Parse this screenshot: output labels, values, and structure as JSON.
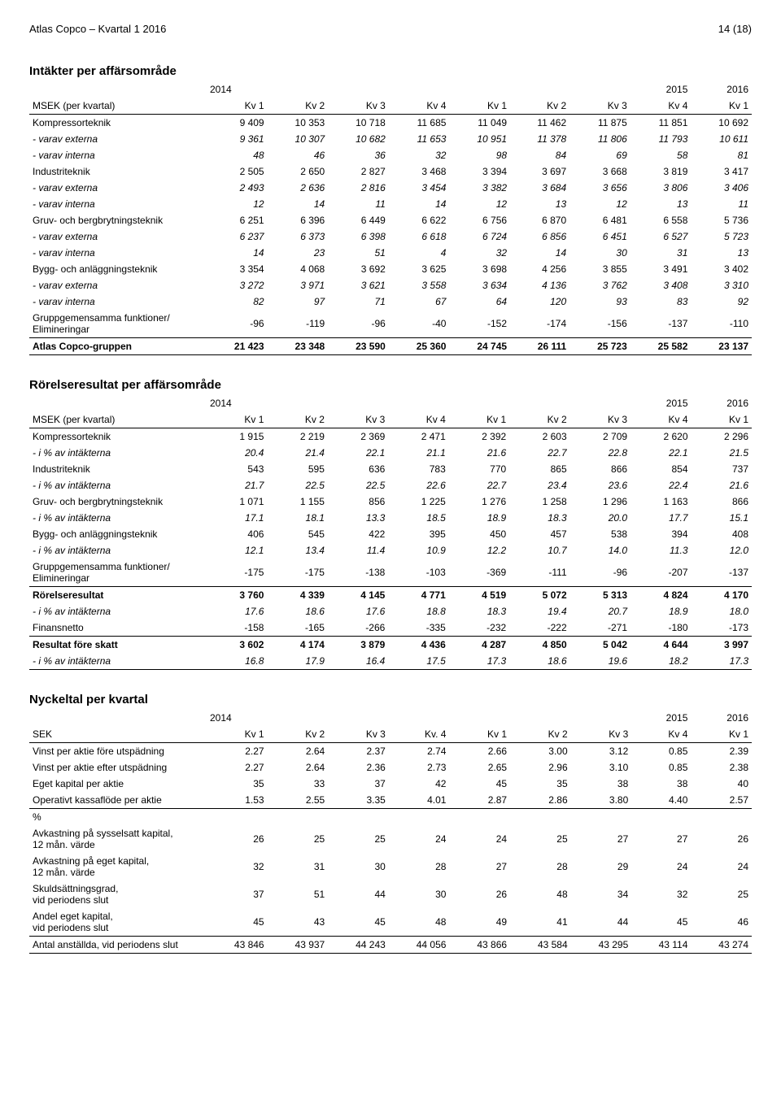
{
  "header": {
    "left": "Atlas Copco – Kvartal 1 2016",
    "right": "14 (18)"
  },
  "revenue": {
    "title": "Intäkter per affärsområde",
    "years": [
      "2014",
      "2015",
      "2016"
    ],
    "rowhead": "MSEK (per kvartal)",
    "cols": [
      "Kv 1",
      "Kv 2",
      "Kv 3",
      "Kv 4",
      "Kv 1",
      "Kv 2",
      "Kv 3",
      "Kv 4",
      "Kv 1"
    ],
    "rows": [
      {
        "label": "Kompressorteknik",
        "v": [
          "9 409",
          "10 353",
          "10 718",
          "11 685",
          "11 049",
          "11 462",
          "11 875",
          "11 851",
          "10 692"
        ]
      },
      {
        "label": "- varav externa",
        "v": [
          "9 361",
          "10 307",
          "10 682",
          "11 653",
          "10 951",
          "11 378",
          "11 806",
          "11 793",
          "10 611"
        ],
        "italic": true
      },
      {
        "label": "- varav interna",
        "v": [
          "48",
          "46",
          "36",
          "32",
          "98",
          "84",
          "69",
          "58",
          "81"
        ],
        "italic": true
      },
      {
        "label": "Industriteknik",
        "v": [
          "2 505",
          "2 650",
          "2 827",
          "3 468",
          "3 394",
          "3 697",
          "3 668",
          "3 819",
          "3 417"
        ]
      },
      {
        "label": "- varav externa",
        "v": [
          "2 493",
          "2 636",
          "2 816",
          "3 454",
          "3 382",
          "3 684",
          "3 656",
          "3 806",
          "3 406"
        ],
        "italic": true
      },
      {
        "label": "- varav interna",
        "v": [
          "12",
          "14",
          "11",
          "14",
          "12",
          "13",
          "12",
          "13",
          "11"
        ],
        "italic": true
      },
      {
        "label": "Gruv- och bergbrytningsteknik",
        "v": [
          "6 251",
          "6 396",
          "6 449",
          "6 622",
          "6 756",
          "6 870",
          "6 481",
          "6 558",
          "5 736"
        ]
      },
      {
        "label": "- varav externa",
        "v": [
          "6 237",
          "6 373",
          "6 398",
          "6 618",
          "6 724",
          "6 856",
          "6 451",
          "6 527",
          "5 723"
        ],
        "italic": true
      },
      {
        "label": "- varav interna",
        "v": [
          "14",
          "23",
          "51",
          "4",
          "32",
          "14",
          "30",
          "31",
          "13"
        ],
        "italic": true
      },
      {
        "label": "Bygg- och anläggningsteknik",
        "v": [
          "3 354",
          "4 068",
          "3 692",
          "3 625",
          "3 698",
          "4 256",
          "3 855",
          "3 491",
          "3 402"
        ]
      },
      {
        "label": "- varav externa",
        "v": [
          "3 272",
          "3 971",
          "3 621",
          "3 558",
          "3 634",
          "4 136",
          "3 762",
          "3 408",
          "3 310"
        ],
        "italic": true
      },
      {
        "label": "- varav interna",
        "v": [
          "82",
          "97",
          "71",
          "67",
          "64",
          "120",
          "93",
          "83",
          "92"
        ],
        "italic": true
      },
      {
        "label": "Gruppgemensamma funktioner/\nElimineringar",
        "v": [
          "-96",
          "-119",
          "-96",
          "-40",
          "-152",
          "-174",
          "-156",
          "-137",
          "-110"
        ],
        "rule": true
      },
      {
        "label": "Atlas Copco-gruppen",
        "v": [
          "21 423",
          "23 348",
          "23 590",
          "25 360",
          "24 745",
          "26 111",
          "25 723",
          "25 582",
          "23 137"
        ],
        "bold": true,
        "final": true
      }
    ]
  },
  "opresult": {
    "title": "Rörelseresultat per affärsområde",
    "years": [
      "2014",
      "2015",
      "2016"
    ],
    "rowhead": "MSEK (per kvartal)",
    "cols": [
      "Kv 1",
      "Kv 2",
      "Kv 3",
      "Kv 4",
      "Kv 1",
      "Kv 2",
      "Kv 3",
      "Kv 4",
      "Kv 1"
    ],
    "rows": [
      {
        "label": "Kompressorteknik",
        "v": [
          "1 915",
          "2 219",
          "2 369",
          "2 471",
          "2 392",
          "2 603",
          "2 709",
          "2 620",
          "2 296"
        ]
      },
      {
        "label": "- i % av intäkterna",
        "v": [
          "20.4",
          "21.4",
          "22.1",
          "21.1",
          "21.6",
          "22.7",
          "22.8",
          "22.1",
          "21.5"
        ],
        "italic": true
      },
      {
        "label": "Industriteknik",
        "v": [
          "543",
          "595",
          "636",
          "783",
          "770",
          "865",
          "866",
          "854",
          "737"
        ]
      },
      {
        "label": "- i % av intäkterna",
        "v": [
          "21.7",
          "22.5",
          "22.5",
          "22.6",
          "22.7",
          "23.4",
          "23.6",
          "22.4",
          "21.6"
        ],
        "italic": true
      },
      {
        "label": "Gruv- och bergbrytningsteknik",
        "v": [
          "1 071",
          "1 155",
          "856",
          "1 225",
          "1 276",
          "1 258",
          "1 296",
          "1 163",
          "866"
        ]
      },
      {
        "label": "- i % av intäkterna",
        "v": [
          "17.1",
          "18.1",
          "13.3",
          "18.5",
          "18.9",
          "18.3",
          "20.0",
          "17.7",
          "15.1"
        ],
        "italic": true
      },
      {
        "label": "Bygg- och anläggningsteknik",
        "v": [
          "406",
          "545",
          "422",
          "395",
          "450",
          "457",
          "538",
          "394",
          "408"
        ]
      },
      {
        "label": "- i % av intäkterna",
        "v": [
          "12.1",
          "13.4",
          "11.4",
          "10.9",
          "12.2",
          "10.7",
          "14.0",
          "11.3",
          "12.0"
        ],
        "italic": true
      },
      {
        "label": "Gruppgemensamma funktioner/\nElimineringar",
        "v": [
          "-175",
          "-175",
          "-138",
          "-103",
          "-369",
          "-111",
          "-96",
          "-207",
          "-137"
        ],
        "rule": true
      },
      {
        "label": "Rörelseresultat",
        "v": [
          "3 760",
          "4 339",
          "4 145",
          "4 771",
          "4 519",
          "5 072",
          "5 313",
          "4 824",
          "4 170"
        ],
        "bold": true,
        "top": true
      },
      {
        "label": "- i % av intäkterna",
        "v": [
          "17.6",
          "18.6",
          "17.6",
          "18.8",
          "18.3",
          "19.4",
          "20.7",
          "18.9",
          "18.0"
        ],
        "italic": true
      },
      {
        "label": "Finansnetto",
        "v": [
          "-158",
          "-165",
          "-266",
          "-335",
          "-232",
          "-222",
          "-271",
          "-180",
          "-173"
        ],
        "rule": true
      },
      {
        "label": "Resultat före skatt",
        "v": [
          "3 602",
          "4 174",
          "3 879",
          "4 436",
          "4 287",
          "4 850",
          "5 042",
          "4 644",
          "3 997"
        ],
        "bold": true,
        "top": true
      },
      {
        "label": "- i % av intäkterna",
        "v": [
          "16.8",
          "17.9",
          "16.4",
          "17.5",
          "17.3",
          "18.6",
          "19.6",
          "18.2",
          "17.3"
        ],
        "italic": true,
        "final": true
      }
    ]
  },
  "kpi": {
    "title": "Nyckeltal per kvartal",
    "years": [
      "2014",
      "2015",
      "2016"
    ],
    "rowhead": "SEK",
    "cols": [
      "Kv 1",
      "Kv 2",
      "Kv 3",
      "Kv. 4",
      "Kv 1",
      "Kv 2",
      "Kv 3",
      "Kv 4",
      "Kv 1"
    ],
    "rows": [
      {
        "label": "Vinst per aktie före utspädning",
        "v": [
          "2.27",
          "2.64",
          "2.37",
          "2.74",
          "2.66",
          "3.00",
          "3.12",
          "0.85",
          "2.39"
        ]
      },
      {
        "label": "Vinst per aktie efter utspädning",
        "v": [
          "2.27",
          "2.64",
          "2.36",
          "2.73",
          "2.65",
          "2.96",
          "3.10",
          "0.85",
          "2.38"
        ]
      },
      {
        "label": "Eget kapital per aktie",
        "v": [
          "35",
          "33",
          "37",
          "42",
          "45",
          "35",
          "38",
          "38",
          "40"
        ]
      },
      {
        "label": "Operativt kassaflöde per aktie",
        "v": [
          "1.53",
          "2.55",
          "3.35",
          "4.01",
          "2.87",
          "2.86",
          "3.80",
          "4.40",
          "2.57"
        ],
        "rule": true
      },
      {
        "label": "%",
        "v": [
          "",
          "",
          "",
          "",
          "",
          "",
          "",
          "",
          ""
        ],
        "top": true
      },
      {
        "label": "Avkastning på sysselsatt kapital,\n12 mån. värde",
        "v": [
          "26",
          "25",
          "25",
          "24",
          "24",
          "25",
          "27",
          "27",
          "26"
        ]
      },
      {
        "label": "Avkastning på eget kapital,\n12 mån. värde",
        "v": [
          "32",
          "31",
          "30",
          "28",
          "27",
          "28",
          "29",
          "24",
          "24"
        ]
      },
      {
        "label": "Skuldsättningsgrad,\nvid periodens slut",
        "v": [
          "37",
          "51",
          "44",
          "30",
          "26",
          "48",
          "34",
          "32",
          "25"
        ]
      },
      {
        "label": "Andel eget kapital,\nvid periodens slut",
        "v": [
          "45",
          "43",
          "45",
          "48",
          "49",
          "41",
          "44",
          "45",
          "46"
        ]
      },
      {
        "label": "Antal anställda, vid periodens slut",
        "v": [
          "43 846",
          "43 937",
          "44 243",
          "44 056",
          "43 866",
          "43 584",
          "43 295",
          "43 114",
          "43 274"
        ],
        "final": true,
        "top": true
      }
    ]
  }
}
